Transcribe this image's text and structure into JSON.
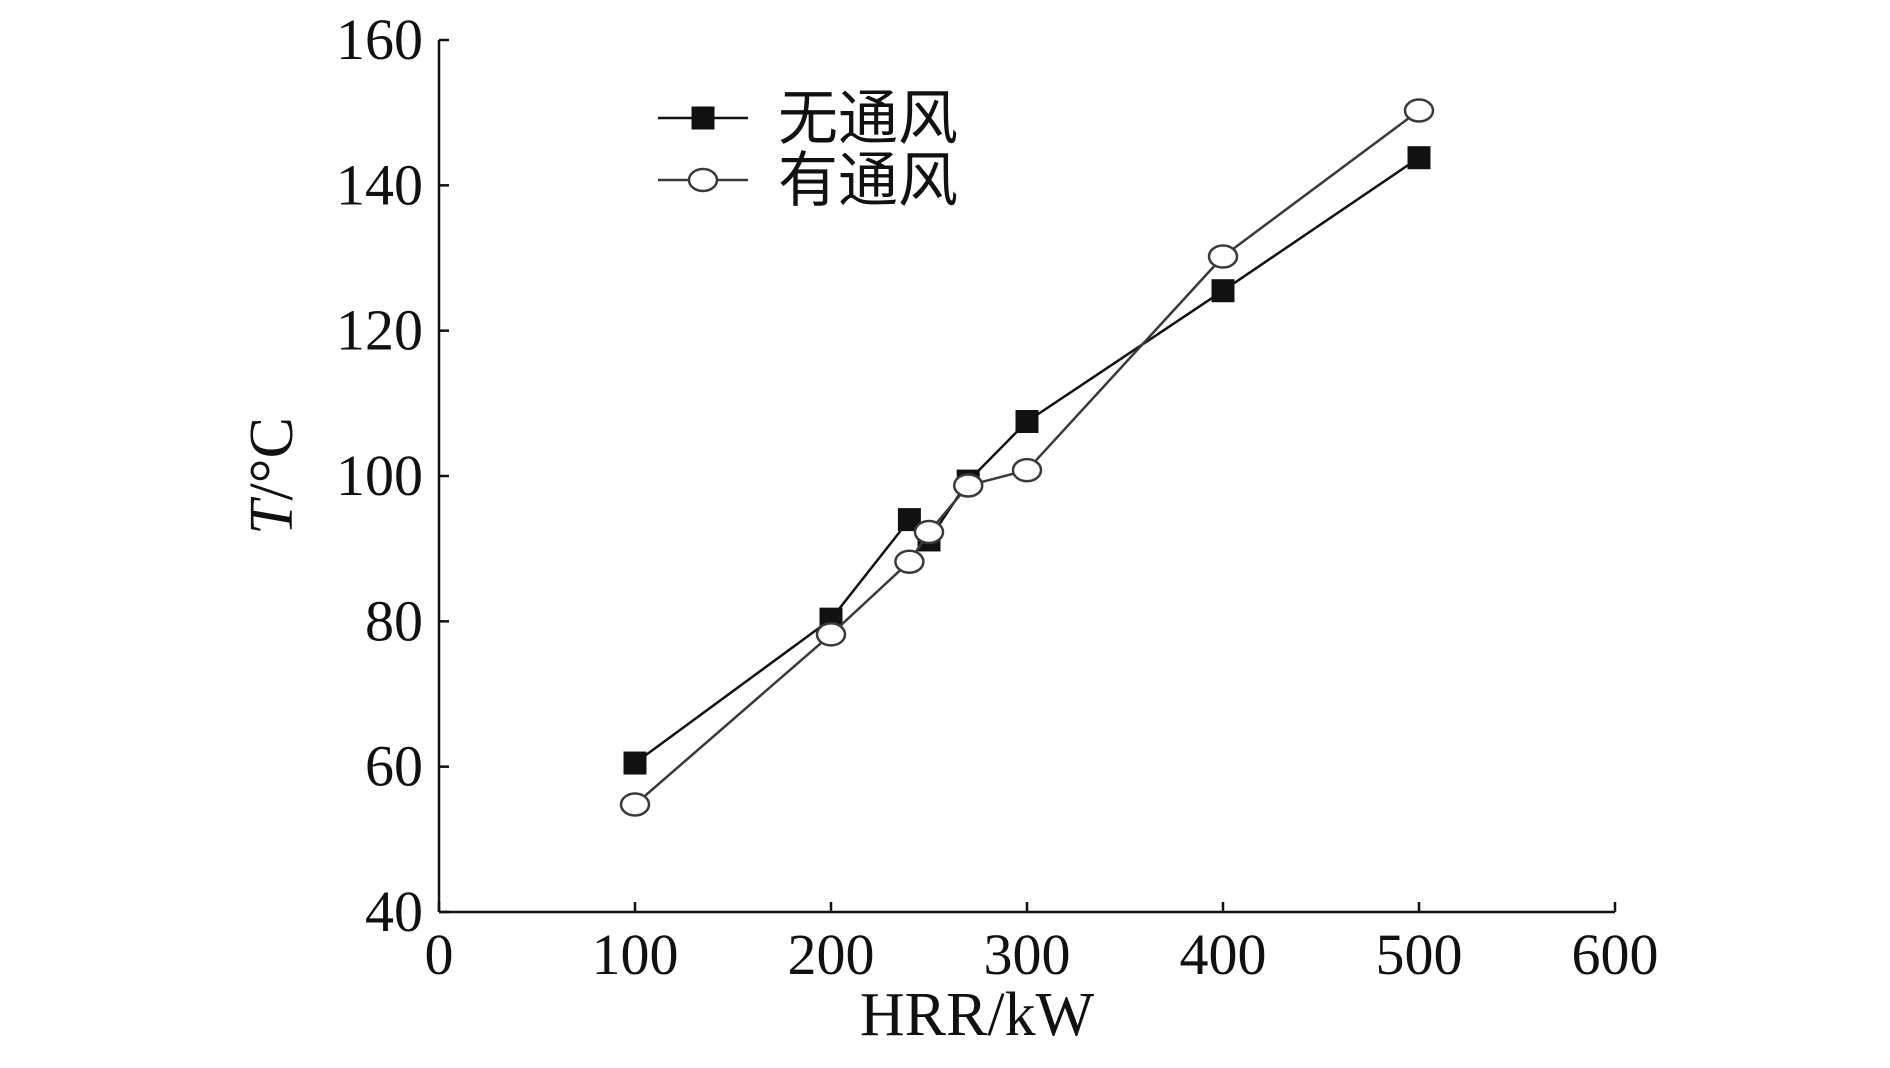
{
  "chart_data": {
    "type": "line",
    "xlabel": "HRR/kW",
    "ylabel": {
      "italic_part": "T",
      "rest": "/°C"
    },
    "xlim": [
      0,
      600
    ],
    "ylim": [
      40,
      160
    ],
    "xticks": [
      0,
      100,
      200,
      300,
      400,
      500,
      600
    ],
    "yticks": [
      40,
      60,
      80,
      100,
      120,
      140,
      160
    ],
    "grid": false,
    "legend_position": "top-left",
    "series": [
      {
        "name": "无通风",
        "marker": "filled-square",
        "color": "#111111",
        "x": [
          100,
          200,
          240,
          250,
          270,
          300,
          400,
          500
        ],
        "y": [
          60.5,
          80.3,
          94.0,
          91.2,
          99.3,
          107.5,
          125.5,
          143.8
        ]
      },
      {
        "name": "有通风",
        "marker": "open-circle",
        "color": "#3a3a3a",
        "x": [
          100,
          200,
          240,
          250,
          270,
          300,
          400,
          500
        ],
        "y": [
          54.8,
          78.2,
          88.2,
          92.3,
          98.7,
          100.8,
          130.2,
          150.3
        ]
      }
    ]
  }
}
